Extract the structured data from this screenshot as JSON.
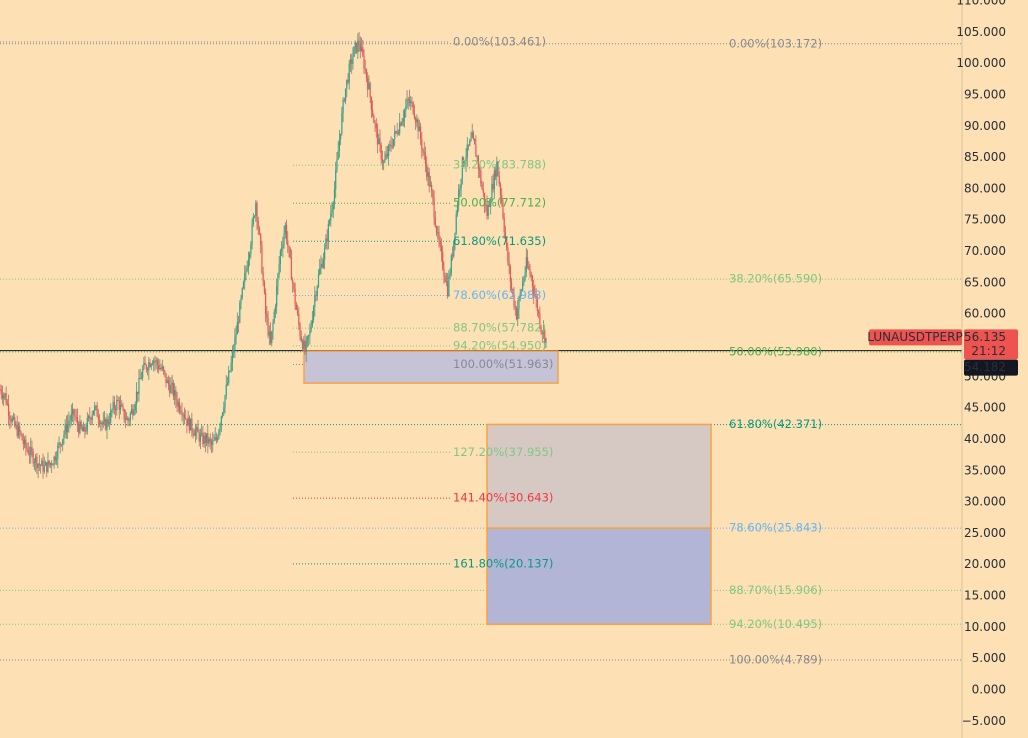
{
  "chart_data": {
    "type": "candlestick",
    "symbol_label": "LUNAUSDTPERP",
    "last_price": "56.135",
    "countdown": "21:12",
    "crosshair_price": "54.182",
    "ylim": [
      -7.5,
      110
    ],
    "y_ticks": [
      {
        "value": 110,
        "label": "110.000"
      },
      {
        "value": 105,
        "label": "105.000"
      },
      {
        "value": 100,
        "label": "100.000"
      },
      {
        "value": 95,
        "label": "95.000"
      },
      {
        "value": 90,
        "label": "90.000"
      },
      {
        "value": 85,
        "label": "85.000"
      },
      {
        "value": 80,
        "label": "80.000"
      },
      {
        "value": 75,
        "label": "75.000"
      },
      {
        "value": 70,
        "label": "70.000"
      },
      {
        "value": 65,
        "label": "65.000"
      },
      {
        "value": 60,
        "label": "60.000"
      },
      {
        "value": 55,
        "label": "55.000"
      },
      {
        "value": 50,
        "label": "50.000"
      },
      {
        "value": 45,
        "label": "45.000"
      },
      {
        "value": 40,
        "label": "40.000"
      },
      {
        "value": 35,
        "label": "35.000"
      },
      {
        "value": 30,
        "label": "30.000"
      },
      {
        "value": 25,
        "label": "25.000"
      },
      {
        "value": 20,
        "label": "20.000"
      },
      {
        "value": 15,
        "label": "15.000"
      },
      {
        "value": 10,
        "label": "10.000"
      },
      {
        "value": 5,
        "label": "5.000"
      },
      {
        "value": 0,
        "label": "0.000"
      },
      {
        "value": -5,
        "label": "−5.000"
      }
    ],
    "fib_retracement_1": [
      {
        "label": "0.00%(103.461)",
        "value": 103.461,
        "color": "#868993"
      },
      {
        "label": "38.20%(83.788)",
        "value": 83.788,
        "color": "#81c784"
      },
      {
        "label": "50.00%(77.712)",
        "value": 77.712,
        "color": "#4caf50"
      },
      {
        "label": "61.80%(71.635)",
        "value": 71.635,
        "color": "#089981"
      },
      {
        "label": "78.60%(62.983)",
        "value": 62.983,
        "color": "#64b5f6"
      },
      {
        "label": "88.70%(57.782)",
        "value": 57.782,
        "color": "#81c784"
      },
      {
        "label": "94.20%(54.950)",
        "value": 54.95,
        "color": "#81c784"
      },
      {
        "label": "100.00%(51.963)",
        "value": 51.963,
        "color": "#868993"
      },
      {
        "label": "127.20%(37.955)",
        "value": 37.955,
        "color": "#81c784"
      },
      {
        "label": "141.40%(30.643)",
        "value": 30.643,
        "color": "#f23645"
      },
      {
        "label": "161.80%(20.137)",
        "value": 20.137,
        "color": "#089981"
      }
    ],
    "fib_retracement_2": [
      {
        "label": "0.00%(103.172)",
        "value": 103.172,
        "color": "#868993"
      },
      {
        "label": "38.20%(65.590)",
        "value": 65.59,
        "color": "#81c784"
      },
      {
        "label": "50.00%(53.980)",
        "value": 53.98,
        "color": "#4caf50"
      },
      {
        "label": "61.80%(42.371)",
        "value": 42.371,
        "color": "#089981"
      },
      {
        "label": "78.60%(25.843)",
        "value": 25.843,
        "color": "#64b5f6"
      },
      {
        "label": "88.70%(15.906)",
        "value": 15.906,
        "color": "#81c784"
      },
      {
        "label": "94.20%(10.495)",
        "value": 10.495,
        "color": "#81c784"
      },
      {
        "label": "100.00%(4.789)",
        "value": 4.789,
        "color": "#868993"
      }
    ],
    "zones": [
      {
        "name": "zone-small",
        "top": 54.1,
        "bottom": 49.0,
        "color": "#c7c3d6"
      },
      {
        "name": "zone-upper",
        "top": 42.4,
        "bottom": 25.843,
        "color": "#d6c8c3"
      },
      {
        "name": "zone-lower",
        "top": 25.843,
        "bottom": 10.495,
        "color": "#b3b5d6"
      }
    ],
    "price_path": [
      48,
      47,
      44,
      42,
      41,
      39,
      38,
      37,
      36,
      35.5,
      36,
      37,
      39,
      41,
      43,
      44,
      42,
      41,
      43,
      45,
      44,
      42,
      43,
      45,
      46,
      44,
      43,
      45,
      48,
      51,
      52,
      53,
      52,
      51,
      49,
      48,
      46,
      45,
      43,
      42,
      41,
      40,
      40,
      39,
      40,
      44,
      48,
      52,
      57,
      62,
      67,
      72,
      78,
      70,
      60,
      55,
      62,
      70,
      74,
      68,
      62,
      57,
      54,
      57,
      63,
      67,
      70,
      75,
      80,
      88,
      95,
      99,
      102,
      103.4,
      100,
      96,
      91,
      87,
      84,
      86,
      88,
      90,
      92,
      94,
      93,
      90,
      86,
      82,
      78,
      72,
      68,
      64,
      70,
      78,
      84,
      86,
      88,
      85,
      80,
      76,
      80,
      84,
      78,
      70,
      64,
      60,
      64,
      68,
      66,
      62,
      58,
      56
    ]
  }
}
